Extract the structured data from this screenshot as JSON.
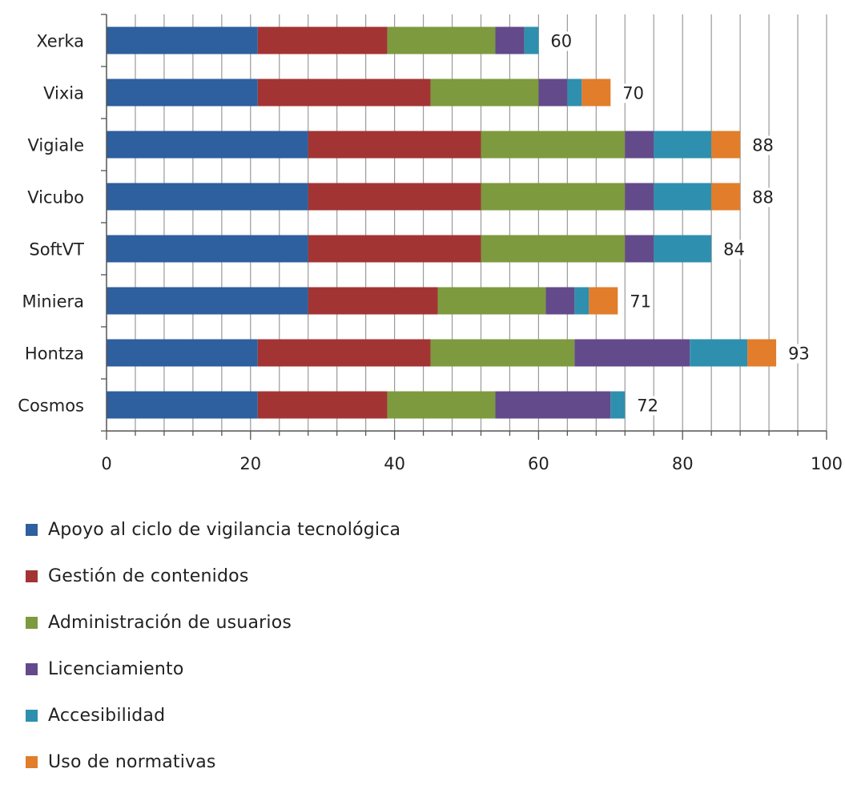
{
  "chart_data": {
    "type": "bar",
    "orientation": "horizontal",
    "stacked": true,
    "categories": [
      "Xerka",
      "Vixia",
      "Vigiale",
      "Vicubo",
      "SoftVT",
      "Miniera",
      "Hontza",
      "Cosmos"
    ],
    "series": [
      {
        "name": "Apoyo al ciclo de vigilancia tecnológica",
        "color": "#2e5f9e",
        "values": [
          21,
          21,
          28,
          28,
          28,
          28,
          21,
          21
        ]
      },
      {
        "name": "Gestión de contenidos",
        "color": "#a33434",
        "values": [
          18,
          24,
          24,
          24,
          24,
          18,
          24,
          18
        ]
      },
      {
        "name": "Administración de usuarios",
        "color": "#7d9a3f",
        "values": [
          15,
          15,
          20,
          20,
          20,
          15,
          20,
          15
        ]
      },
      {
        "name": "Licenciamiento",
        "color": "#634a8a",
        "values": [
          4,
          4,
          4,
          4,
          4,
          4,
          16,
          16
        ]
      },
      {
        "name": "Accesibilidad",
        "color": "#2f8fae",
        "values": [
          2,
          2,
          8,
          8,
          8,
          2,
          8,
          2
        ]
      },
      {
        "name": "Uso de normativas",
        "color": "#e17d2b",
        "values": [
          0,
          4,
          4,
          4,
          0,
          4,
          4,
          0
        ]
      }
    ],
    "totals": [
      60,
      70,
      88,
      88,
      84,
      71,
      93,
      72
    ],
    "xlim": [
      0,
      100
    ],
    "xticks": [
      0,
      20,
      40,
      60,
      80,
      100
    ],
    "title": "",
    "xlabel": "",
    "ylabel": "",
    "grid": "vertical minor gridlines every 4 units",
    "legend_position": "bottom-left"
  }
}
